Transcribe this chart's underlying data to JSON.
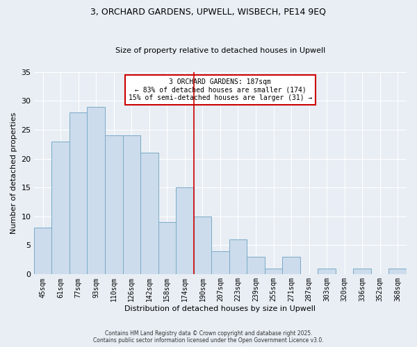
{
  "title": "3, ORCHARD GARDENS, UPWELL, WISBECH, PE14 9EQ",
  "subtitle": "Size of property relative to detached houses in Upwell",
  "xlabel": "Distribution of detached houses by size in Upwell",
  "ylabel": "Number of detached properties",
  "bar_labels": [
    "45sqm",
    "61sqm",
    "77sqm",
    "93sqm",
    "110sqm",
    "126sqm",
    "142sqm",
    "158sqm",
    "174sqm",
    "190sqm",
    "207sqm",
    "223sqm",
    "239sqm",
    "255sqm",
    "271sqm",
    "287sqm",
    "303sqm",
    "320sqm",
    "336sqm",
    "352sqm",
    "368sqm"
  ],
  "bar_values": [
    8,
    23,
    28,
    29,
    24,
    24,
    21,
    9,
    15,
    10,
    4,
    6,
    3,
    1,
    3,
    0,
    1,
    0,
    1,
    0,
    1
  ],
  "bar_color": "#ccdcec",
  "bar_edge_color": "#7aaac8",
  "vline_x": 8.5,
  "vline_color": "#cc0000",
  "ylim": [
    0,
    35
  ],
  "yticks": [
    0,
    5,
    10,
    15,
    20,
    25,
    30,
    35
  ],
  "annotation_text": "3 ORCHARD GARDENS: 187sqm\n← 83% of detached houses are smaller (174)\n15% of semi-detached houses are larger (31) →",
  "footer_line1": "Contains HM Land Registry data © Crown copyright and database right 2025.",
  "footer_line2": "Contains public sector information licensed under the Open Government Licence v3.0.",
  "bg_color": "#e8eef4",
  "plot_bg_color": "#e8eef4",
  "grid_color": "white"
}
